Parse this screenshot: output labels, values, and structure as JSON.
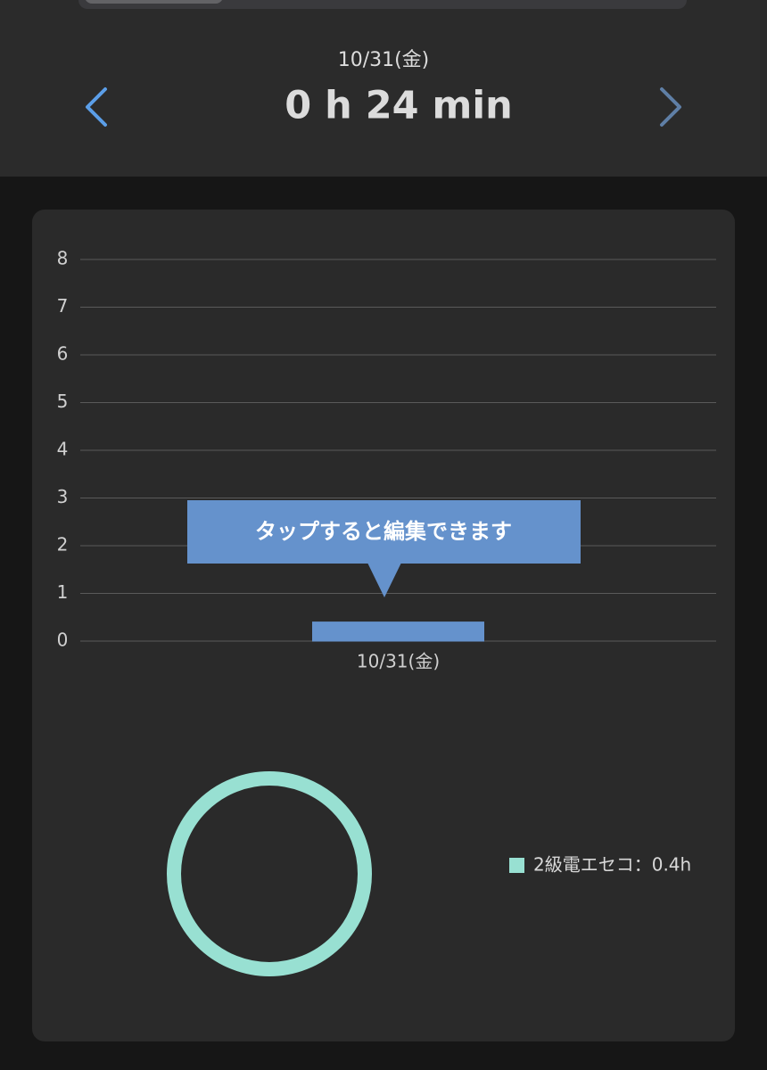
{
  "header": {
    "date": "10/31(金)",
    "duration": "0 h 24 min"
  },
  "chart_data": [
    {
      "type": "bar",
      "categories": [
        null,
        "10/31(金)",
        null
      ],
      "values": [
        0,
        0.4,
        0
      ],
      "color": "#6592cc",
      "ylim": [
        0,
        8
      ],
      "yticks": [
        0,
        1,
        2,
        3,
        4,
        5,
        6,
        7,
        8
      ],
      "grid": true,
      "annotation": "タップすると編集できます"
    },
    {
      "type": "donut",
      "labels": [
        "2級電エセコ：0.4h"
      ],
      "values": [
        0.4
      ],
      "colors": [
        "#98e0d2"
      ]
    }
  ]
}
